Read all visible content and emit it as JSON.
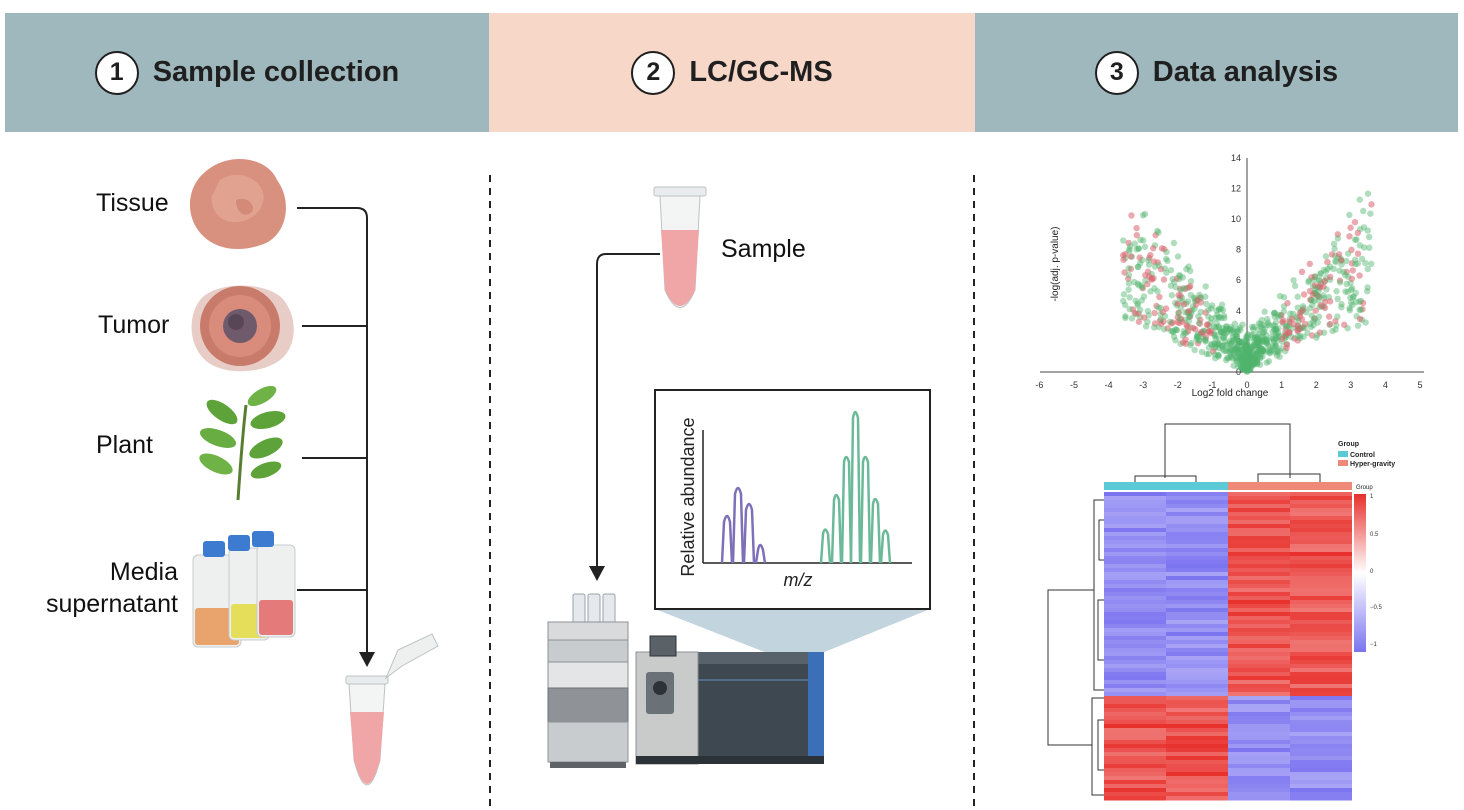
{
  "steps": [
    {
      "number": "1",
      "title": "Sample collection"
    },
    {
      "number": "2",
      "title": "LC/GC-MS"
    },
    {
      "number": "3",
      "title": "Data analysis"
    }
  ],
  "sources": {
    "tissue": "Tissue",
    "tumor": "Tumor",
    "plant": "Plant",
    "media_line1": "Media",
    "media_line2": "supernatant"
  },
  "ms": {
    "sample_label": "Sample",
    "spectrum_ylabel": "Relative abundance",
    "spectrum_xlabel": "m/z"
  },
  "volcano": {
    "xlabel": "Log2 fold change",
    "ylabel": "-log(adj. p-value)",
    "x_ticks": [
      "-6",
      "-5",
      "-4",
      "-3",
      "-2",
      "-1",
      "0",
      "1",
      "2",
      "3",
      "4",
      "5"
    ],
    "y_ticks": [
      "0",
      "2",
      "4",
      "6",
      "8",
      "10",
      "12",
      "14"
    ]
  },
  "heatmap": {
    "legend_title": "Group",
    "groups": [
      {
        "name": "Control",
        "color": "#5bcad6"
      },
      {
        "name": "Hyper-gravity",
        "color": "#ef8a78"
      }
    ],
    "annotation_label": "Group",
    "scale_ticks": [
      "1",
      "0.5",
      "0",
      "−0.5",
      "−1"
    ]
  },
  "colors": {
    "header_teal": "#9fb8bd",
    "header_peach": "#f7d8c8",
    "up_red": "#e8302c",
    "down_blue": "#7b74f0"
  }
}
